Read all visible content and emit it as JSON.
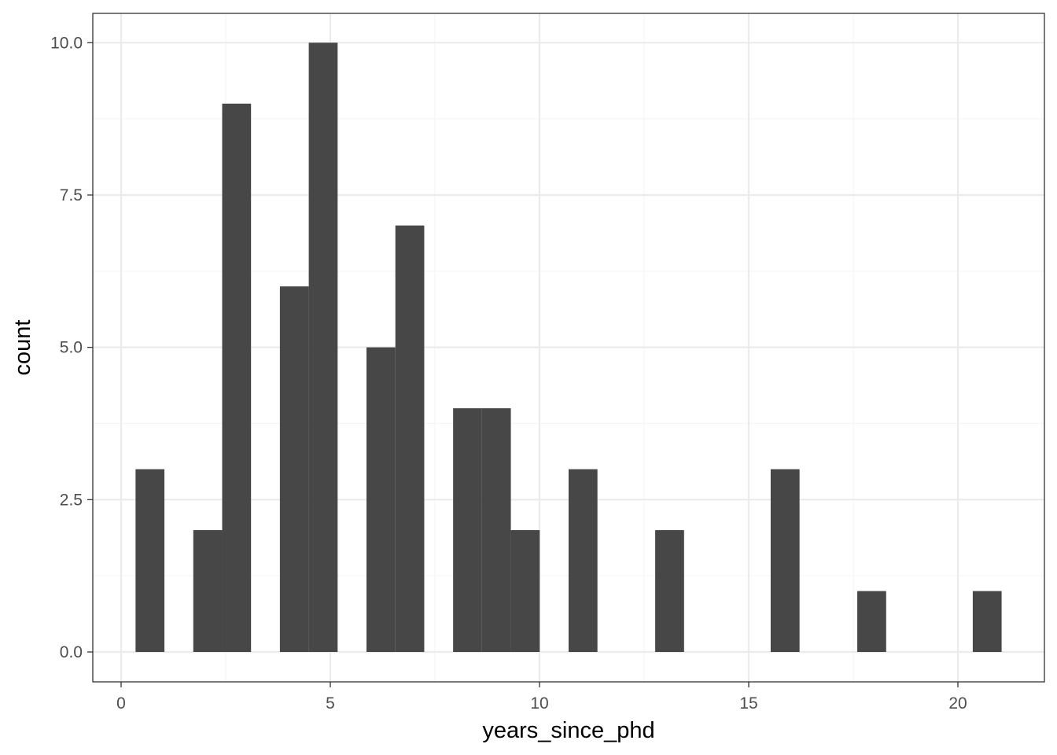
{
  "chart_data": {
    "type": "bar",
    "subtype": "histogram",
    "xlabel": "years_since_phd",
    "ylabel": "count",
    "xlim": [
      -0.7,
      22.0
    ],
    "ylim": [
      -0.5,
      10.5
    ],
    "x_ticks": [
      0,
      5,
      10,
      15,
      20
    ],
    "x_tick_labels": [
      "0",
      "5",
      "10",
      "15",
      "20"
    ],
    "y_ticks": [
      0,
      2.5,
      5,
      7.5,
      10
    ],
    "y_tick_labels": [
      "0.0",
      "2.5",
      "5.0",
      "7.5",
      "10.0"
    ],
    "bin_width": 0.69,
    "bins": [
      {
        "x": 0.69,
        "count": 3
      },
      {
        "x": 2.07,
        "count": 2
      },
      {
        "x": 2.76,
        "count": 9
      },
      {
        "x": 4.14,
        "count": 6
      },
      {
        "x": 4.83,
        "count": 10
      },
      {
        "x": 6.21,
        "count": 5
      },
      {
        "x": 6.9,
        "count": 7
      },
      {
        "x": 8.28,
        "count": 4
      },
      {
        "x": 8.97,
        "count": 4
      },
      {
        "x": 9.66,
        "count": 2
      },
      {
        "x": 11.04,
        "count": 3
      },
      {
        "x": 13.11,
        "count": 2
      },
      {
        "x": 15.87,
        "count": 3
      },
      {
        "x": 17.94,
        "count": 1
      },
      {
        "x": 20.7,
        "count": 1
      }
    ],
    "grid": true,
    "colors": {
      "bar": "#474747",
      "grid_major": "#ebebeb",
      "grid_minor": "#f5f5f5",
      "panel_border": "#333333"
    }
  }
}
